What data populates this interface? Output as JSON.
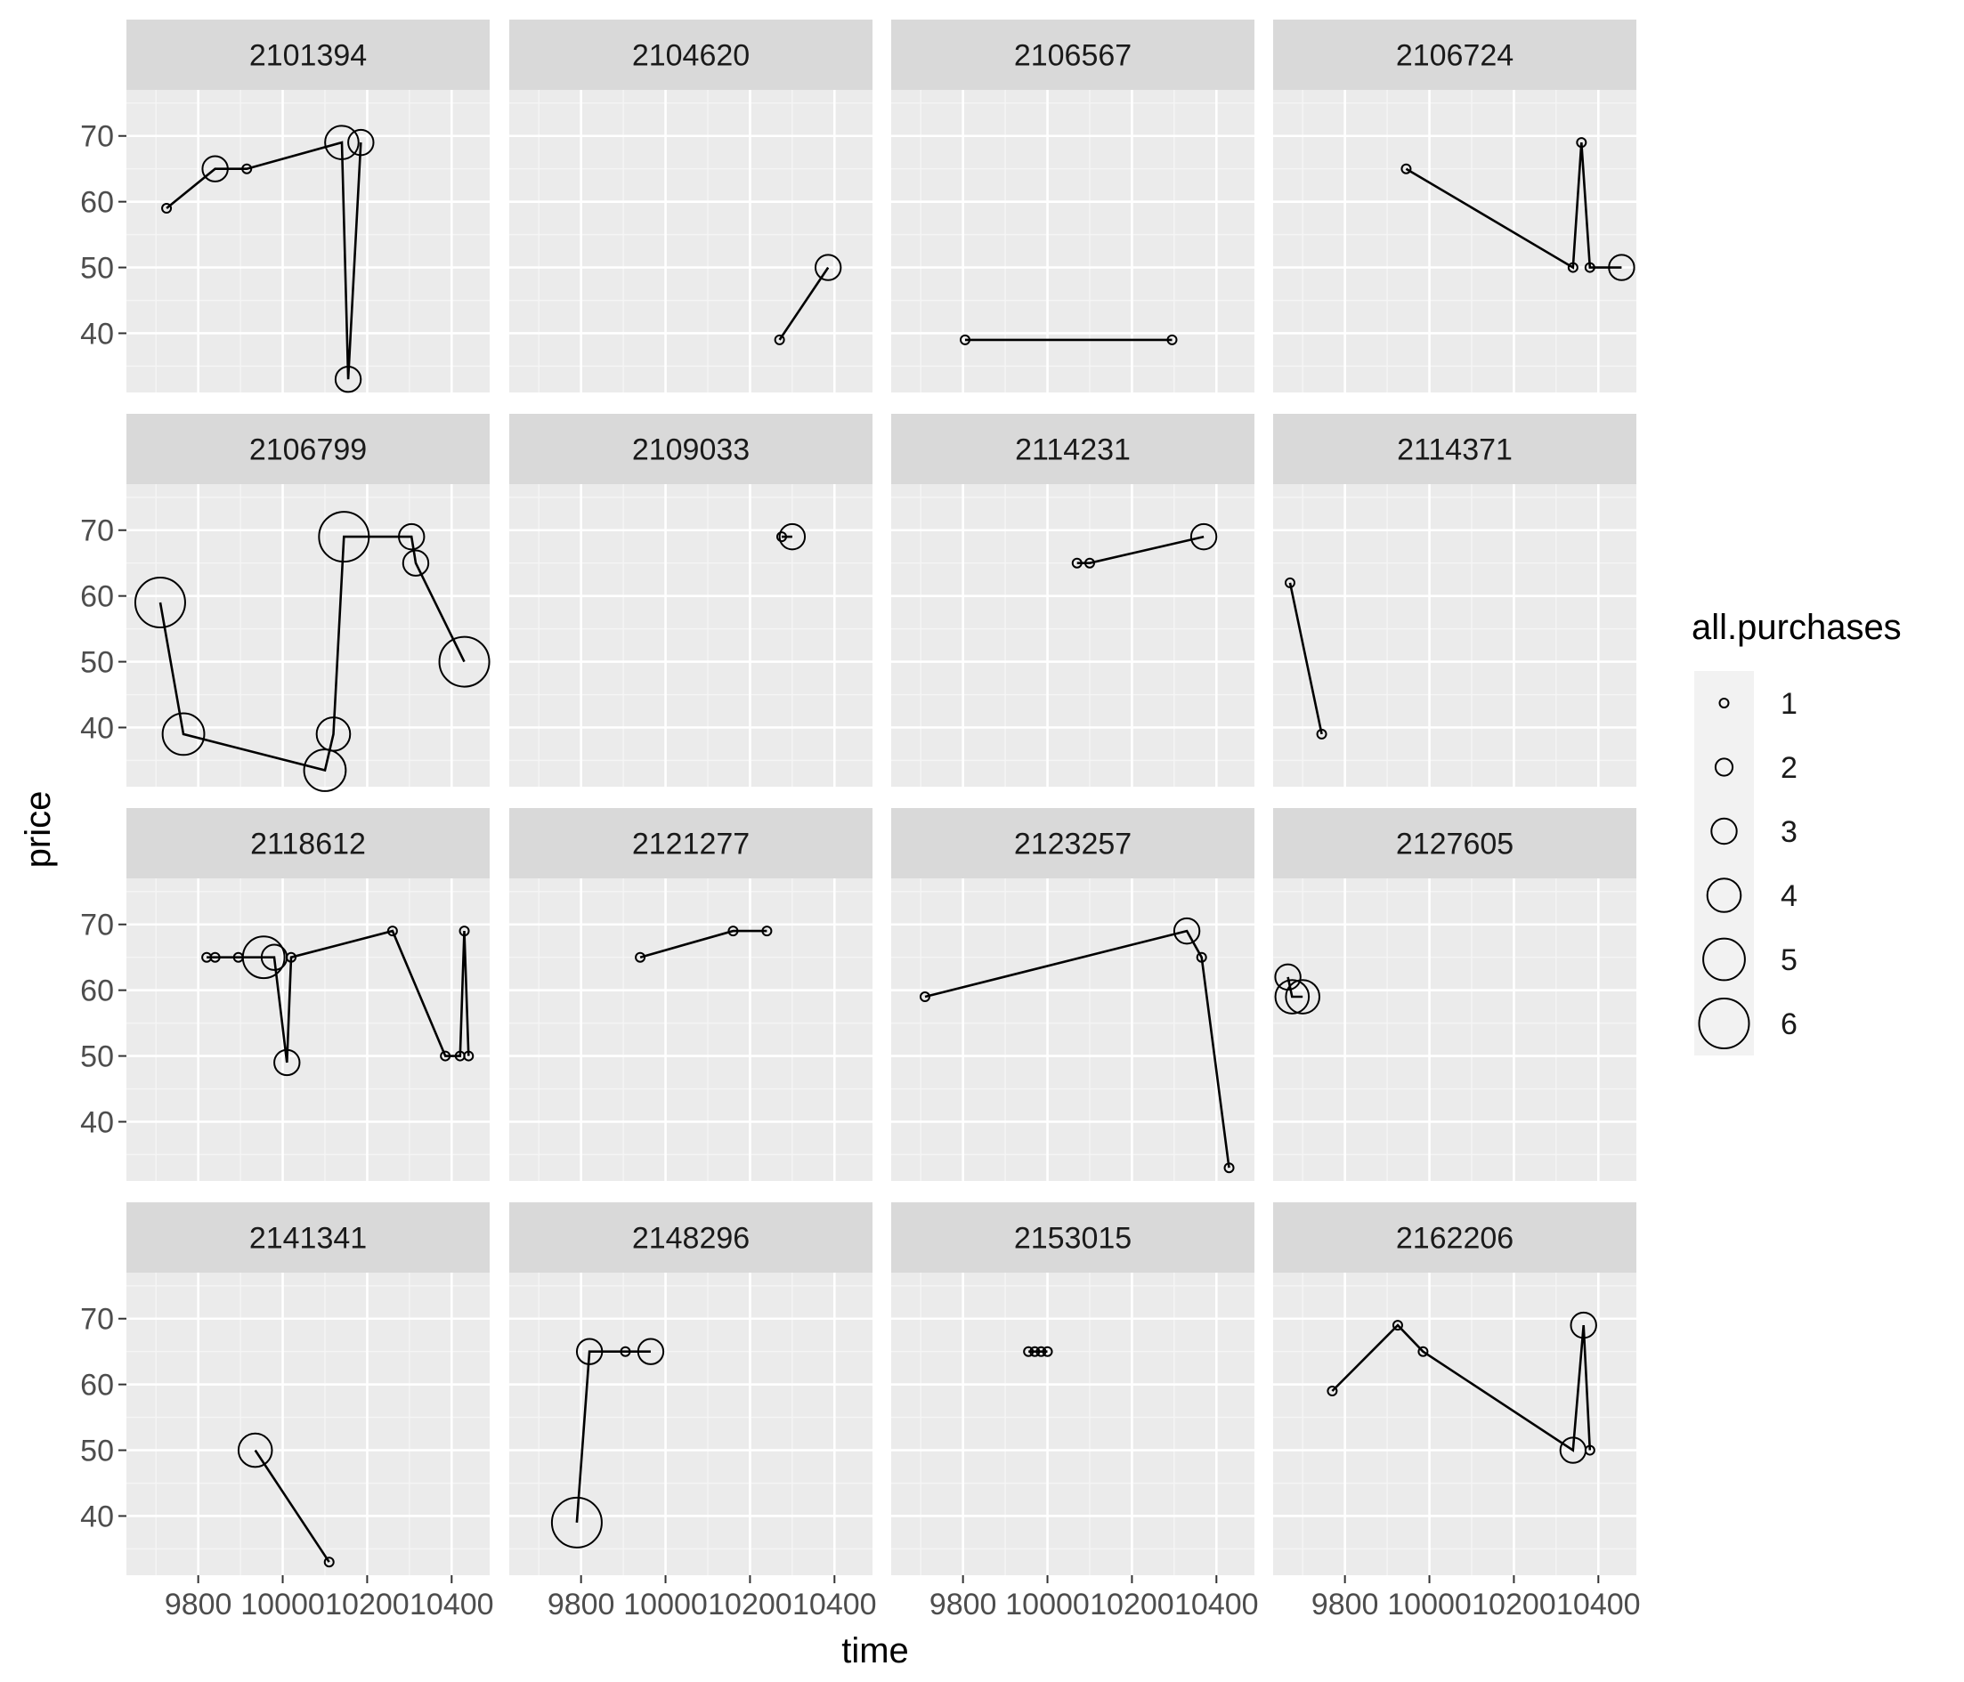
{
  "chart_data": {
    "type": "scatter",
    "facet_by": "id",
    "xlabel": "time",
    "ylabel": "price",
    "xlim": [
      9630,
      10490
    ],
    "ylim": [
      31,
      77
    ],
    "x_ticks": [
      9800,
      10000,
      10200,
      10400
    ],
    "x_tick_labels": [
      "9800",
      "10000",
      "10200",
      "10400"
    ],
    "y_ticks": [
      40,
      50,
      60,
      70
    ],
    "y_tick_labels": [
      "40",
      "50",
      "60",
      "70"
    ],
    "grid": true,
    "legend": {
      "title": "all.purchases",
      "position": "right",
      "entries": [
        {
          "label": "1",
          "value": 1
        },
        {
          "label": "2",
          "value": 2
        },
        {
          "label": "3",
          "value": 3
        },
        {
          "label": "4",
          "value": 4
        },
        {
          "label": "5",
          "value": 5
        },
        {
          "label": "6",
          "value": 6
        }
      ]
    },
    "panels": [
      {
        "id": "2101394",
        "points": [
          {
            "x": 9725,
            "y": 59,
            "size": 1
          },
          {
            "x": 9840,
            "y": 65,
            "size": 3
          },
          {
            "x": 9915,
            "y": 65,
            "size": 1
          },
          {
            "x": 10140,
            "y": 69,
            "size": 4
          },
          {
            "x": 10155,
            "y": 33,
            "size": 3
          },
          {
            "x": 10185,
            "y": 69,
            "size": 3
          }
        ]
      },
      {
        "id": "2104620",
        "points": [
          {
            "x": 10270,
            "y": 39,
            "size": 1
          },
          {
            "x": 10385,
            "y": 50,
            "size": 3
          }
        ]
      },
      {
        "id": "2106567",
        "points": [
          {
            "x": 9805,
            "y": 39,
            "size": 1
          },
          {
            "x": 10295,
            "y": 39,
            "size": 1
          }
        ]
      },
      {
        "id": "2106724",
        "points": [
          {
            "x": 9945,
            "y": 65,
            "size": 1
          },
          {
            "x": 10340,
            "y": 50,
            "size": 1
          },
          {
            "x": 10360,
            "y": 69,
            "size": 1
          },
          {
            "x": 10380,
            "y": 50,
            "size": 1
          },
          {
            "x": 10455,
            "y": 50,
            "size": 3
          }
        ]
      },
      {
        "id": "2106799",
        "points": [
          {
            "x": 9710,
            "y": 59,
            "size": 6
          },
          {
            "x": 9765,
            "y": 39,
            "size": 5
          },
          {
            "x": 10100,
            "y": 33.5,
            "size": 5
          },
          {
            "x": 10120,
            "y": 39,
            "size": 4
          },
          {
            "x": 10145,
            "y": 69,
            "size": 6
          },
          {
            "x": 10305,
            "y": 69,
            "size": 3
          },
          {
            "x": 10315,
            "y": 65,
            "size": 3
          },
          {
            "x": 10430,
            "y": 50,
            "size": 6
          }
        ]
      },
      {
        "id": "2109033",
        "points": [
          {
            "x": 10275,
            "y": 69,
            "size": 1
          },
          {
            "x": 10300,
            "y": 69,
            "size": 3
          }
        ]
      },
      {
        "id": "2114231",
        "points": [
          {
            "x": 10070,
            "y": 65,
            "size": 1
          },
          {
            "x": 10100,
            "y": 65,
            "size": 1
          },
          {
            "x": 10370,
            "y": 69,
            "size": 3
          }
        ]
      },
      {
        "id": "2114371",
        "points": [
          {
            "x": 9670,
            "y": 62,
            "size": 1
          },
          {
            "x": 9745,
            "y": 39,
            "size": 1
          }
        ]
      },
      {
        "id": "2118612",
        "points": [
          {
            "x": 9820,
            "y": 65,
            "size": 1
          },
          {
            "x": 9840,
            "y": 65,
            "size": 1
          },
          {
            "x": 9895,
            "y": 65,
            "size": 1
          },
          {
            "x": 9955,
            "y": 65,
            "size": 5
          },
          {
            "x": 9980,
            "y": 65,
            "size": 3
          },
          {
            "x": 10010,
            "y": 49,
            "size": 3
          },
          {
            "x": 10020,
            "y": 65,
            "size": 1
          },
          {
            "x": 10260,
            "y": 69,
            "size": 1
          },
          {
            "x": 10385,
            "y": 50,
            "size": 1
          },
          {
            "x": 10420,
            "y": 50,
            "size": 1
          },
          {
            "x": 10430,
            "y": 69,
            "size": 1
          },
          {
            "x": 10440,
            "y": 50,
            "size": 1
          }
        ]
      },
      {
        "id": "2121277",
        "points": [
          {
            "x": 9940,
            "y": 65,
            "size": 1
          },
          {
            "x": 10160,
            "y": 69,
            "size": 1
          },
          {
            "x": 10240,
            "y": 69,
            "size": 1
          }
        ]
      },
      {
        "id": "2123257",
        "points": [
          {
            "x": 9710,
            "y": 59,
            "size": 1
          },
          {
            "x": 10330,
            "y": 69,
            "size": 3
          },
          {
            "x": 10365,
            "y": 65,
            "size": 1
          },
          {
            "x": 10430,
            "y": 33,
            "size": 1
          }
        ]
      },
      {
        "id": "2127605",
        "points": [
          {
            "x": 9665,
            "y": 62,
            "size": 3
          },
          {
            "x": 9675,
            "y": 59,
            "size": 4
          },
          {
            "x": 9700,
            "y": 59,
            "size": 4
          }
        ]
      },
      {
        "id": "2141341",
        "points": [
          {
            "x": 9935,
            "y": 50,
            "size": 4
          },
          {
            "x": 10110,
            "y": 33,
            "size": 1
          }
        ]
      },
      {
        "id": "2148296",
        "points": [
          {
            "x": 9790,
            "y": 39,
            "size": 6
          },
          {
            "x": 9820,
            "y": 65,
            "size": 3
          },
          {
            "x": 9905,
            "y": 65,
            "size": 1
          },
          {
            "x": 9965,
            "y": 65,
            "size": 3
          }
        ]
      },
      {
        "id": "2153015",
        "points": [
          {
            "x": 9955,
            "y": 65,
            "size": 1
          },
          {
            "x": 9970,
            "y": 65,
            "size": 1
          },
          {
            "x": 9985,
            "y": 65,
            "size": 1
          },
          {
            "x": 10000,
            "y": 65,
            "size": 1
          }
        ]
      },
      {
        "id": "2162206",
        "points": [
          {
            "x": 9770,
            "y": 59,
            "size": 1
          },
          {
            "x": 9925,
            "y": 69,
            "size": 1
          },
          {
            "x": 9985,
            "y": 65,
            "size": 1
          },
          {
            "x": 10340,
            "y": 50,
            "size": 3
          },
          {
            "x": 10365,
            "y": 69,
            "size": 3
          },
          {
            "x": 10380,
            "y": 50,
            "size": 1
          }
        ]
      }
    ]
  }
}
